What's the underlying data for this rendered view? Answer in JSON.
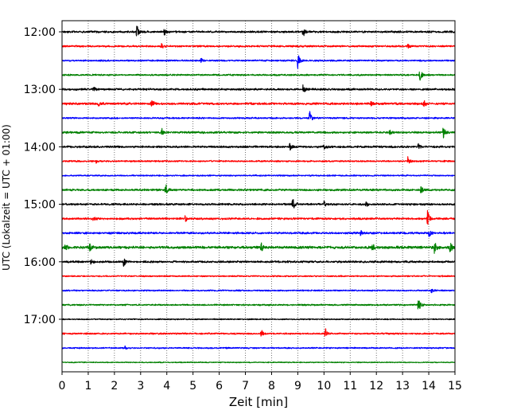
{
  "chart_data": {
    "type": "line",
    "title": "",
    "xlabel": "Zeit  [min]",
    "ylabel": "UTC (Lokalzeit = UTC + 01:00)",
    "xlim": [
      0,
      15
    ],
    "x_ticks": [
      0,
      1,
      2,
      3,
      4,
      5,
      6,
      7,
      8,
      9,
      10,
      11,
      12,
      13,
      14,
      15
    ],
    "grid": "vertical dotted",
    "legend": "none",
    "y_tick_labels": [
      "12:00",
      "13:00",
      "14:00",
      "15:00",
      "16:00",
      "17:00"
    ],
    "trace_colors": [
      "#000000",
      "#ff0000",
      "#0000ff",
      "#008000"
    ],
    "series": [
      {
        "start": "12:00",
        "color": "#000000",
        "amplitude": 1.0,
        "events": [
          {
            "t": 2.85,
            "a": 10
          },
          {
            "t": 3.9,
            "a": 5
          },
          {
            "t": 9.2,
            "a": 8
          }
        ]
      },
      {
        "start": "12:15",
        "color": "#ff0000",
        "amplitude": 0.9,
        "events": [
          {
            "t": 3.8,
            "a": 4
          },
          {
            "t": 13.2,
            "a": 3
          }
        ]
      },
      {
        "start": "12:30",
        "color": "#0000ff",
        "amplitude": 0.8,
        "events": [
          {
            "t": 9.0,
            "a": 11
          },
          {
            "t": 5.3,
            "a": 3
          }
        ]
      },
      {
        "start": "12:45",
        "color": "#008000",
        "amplitude": 0.8,
        "events": [
          {
            "t": 13.65,
            "a": 10
          }
        ]
      },
      {
        "start": "13:00",
        "color": "#000000",
        "amplitude": 1.0,
        "events": [
          {
            "t": 9.2,
            "a": 6
          },
          {
            "t": 1.2,
            "a": 3
          }
        ]
      },
      {
        "start": "13:15",
        "color": "#ff0000",
        "amplitude": 1.1,
        "events": [
          {
            "t": 3.4,
            "a": 8
          },
          {
            "t": 13.8,
            "a": 6
          },
          {
            "t": 1.4,
            "a": 3
          },
          {
            "t": 11.8,
            "a": 3
          }
        ]
      },
      {
        "start": "13:30",
        "color": "#0000ff",
        "amplitude": 0.8,
        "events": [
          {
            "t": 9.45,
            "a": 9
          }
        ]
      },
      {
        "start": "13:45",
        "color": "#008000",
        "amplitude": 1.0,
        "events": [
          {
            "t": 3.8,
            "a": 5
          },
          {
            "t": 14.55,
            "a": 8
          },
          {
            "t": 12.5,
            "a": 3
          }
        ]
      },
      {
        "start": "14:00",
        "color": "#000000",
        "amplitude": 1.0,
        "events": [
          {
            "t": 8.7,
            "a": 6
          },
          {
            "t": 13.6,
            "a": 4
          },
          {
            "t": 10.0,
            "a": 3
          }
        ]
      },
      {
        "start": "14:15",
        "color": "#ff0000",
        "amplitude": 0.8,
        "events": [
          {
            "t": 13.2,
            "a": 6
          },
          {
            "t": 1.3,
            "a": 3
          }
        ]
      },
      {
        "start": "14:30",
        "color": "#0000ff",
        "amplitude": 0.7,
        "events": []
      },
      {
        "start": "14:45",
        "color": "#008000",
        "amplitude": 1.0,
        "events": [
          {
            "t": 3.95,
            "a": 9
          },
          {
            "t": 13.7,
            "a": 4
          }
        ]
      },
      {
        "start": "15:00",
        "color": "#000000",
        "amplitude": 1.0,
        "events": [
          {
            "t": 8.8,
            "a": 10
          },
          {
            "t": 10.0,
            "a": 4
          },
          {
            "t": 11.6,
            "a": 4
          }
        ]
      },
      {
        "start": "15:15",
        "color": "#ff0000",
        "amplitude": 1.0,
        "events": [
          {
            "t": 4.7,
            "a": 4
          },
          {
            "t": 13.95,
            "a": 10
          },
          {
            "t": 1.2,
            "a": 3
          }
        ]
      },
      {
        "start": "15:30",
        "color": "#0000ff",
        "amplitude": 1.0,
        "events": [
          {
            "t": 14.0,
            "a": 7
          },
          {
            "t": 11.4,
            "a": 3
          }
        ]
      },
      {
        "start": "15:45",
        "color": "#008000",
        "amplitude": 1.3,
        "events": [
          {
            "t": 0.1,
            "a": 5
          },
          {
            "t": 1.05,
            "a": 5
          },
          {
            "t": 7.6,
            "a": 5
          },
          {
            "t": 11.85,
            "a": 5
          },
          {
            "t": 14.2,
            "a": 9
          },
          {
            "t": 14.8,
            "a": 9
          }
        ]
      },
      {
        "start": "16:00",
        "color": "#000000",
        "amplitude": 1.0,
        "events": [
          {
            "t": 2.35,
            "a": 6
          },
          {
            "t": 1.1,
            "a": 3
          }
        ]
      },
      {
        "start": "16:15",
        "color": "#ff0000",
        "amplitude": 0.7,
        "events": []
      },
      {
        "start": "16:30",
        "color": "#0000ff",
        "amplitude": 0.7,
        "events": [
          {
            "t": 14.1,
            "a": 3
          }
        ]
      },
      {
        "start": "16:45",
        "color": "#008000",
        "amplitude": 0.8,
        "events": [
          {
            "t": 13.6,
            "a": 11
          }
        ]
      },
      {
        "start": "17:00",
        "color": "#000000",
        "amplitude": 0.6,
        "events": []
      },
      {
        "start": "17:15",
        "color": "#ff0000",
        "amplitude": 0.8,
        "events": [
          {
            "t": 7.6,
            "a": 5
          },
          {
            "t": 10.05,
            "a": 7
          }
        ]
      },
      {
        "start": "17:30",
        "color": "#0000ff",
        "amplitude": 0.7,
        "events": [
          {
            "t": 2.4,
            "a": 2
          }
        ]
      },
      {
        "start": "17:45",
        "color": "#008000",
        "amplitude": 0.5,
        "events": []
      }
    ]
  }
}
